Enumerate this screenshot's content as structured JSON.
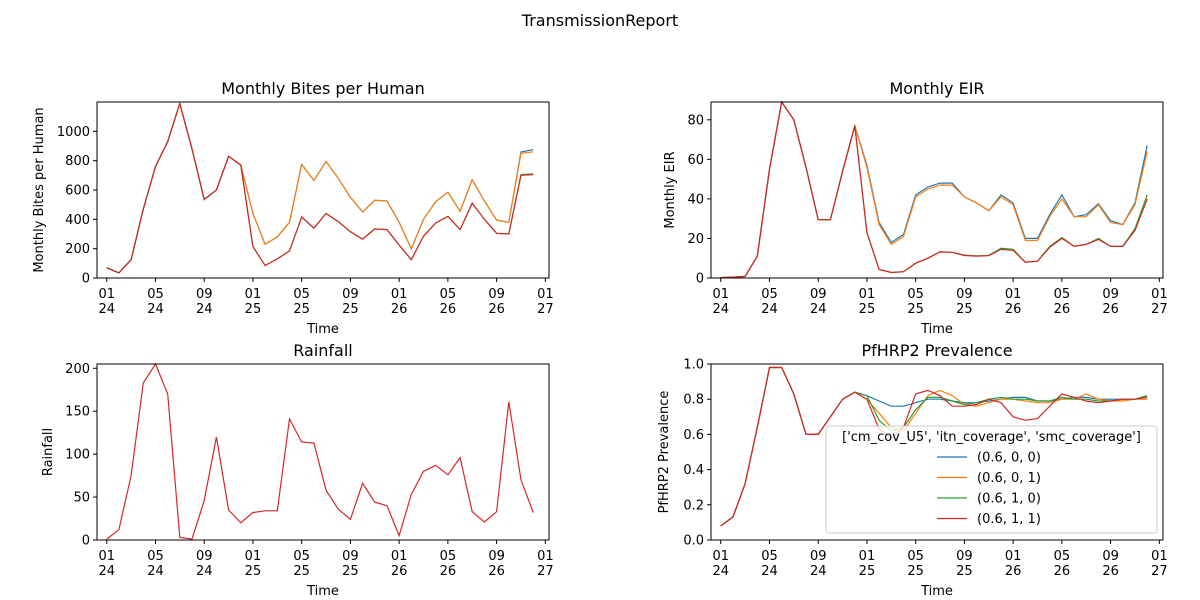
{
  "figure": {
    "title": "TransmissionReport"
  },
  "colors": {
    "s1": "#1f77b4",
    "s2": "#ff7f0e",
    "s3": "#2ca02c",
    "s4": "#d62728"
  },
  "chart_data": [
    {
      "type": "line",
      "title": "Monthly Bites per Human",
      "xlabel": "Time",
      "ylabel": "Monthly Bites per Human",
      "ylim": [
        0,
        1200
      ],
      "yticks": [
        0,
        200,
        400,
        600,
        800,
        1000
      ],
      "x_start": "2024-01",
      "xticks": [
        "01\n24",
        "05\n24",
        "09\n24",
        "01\n25",
        "05\n25",
        "09\n25",
        "01\n26",
        "05\n26",
        "09\n26",
        "01\n27"
      ],
      "series": [
        {
          "name": "(0.6, 0, 0)",
          "values": [
            70,
            35,
            125,
            470,
            760,
            930,
            1190,
            880,
            535,
            600,
            830,
            770,
            440,
            230,
            280,
            380,
            775,
            665,
            795,
            680,
            550,
            450,
            530,
            525,
            380,
            200,
            400,
            520,
            585,
            455,
            670,
            525,
            395,
            380,
            860,
            875
          ]
        },
        {
          "name": "(0.6, 0, 1)",
          "values": [
            70,
            35,
            125,
            470,
            760,
            930,
            1190,
            880,
            535,
            600,
            830,
            770,
            440,
            230,
            280,
            380,
            775,
            665,
            795,
            680,
            550,
            450,
            530,
            525,
            380,
            200,
            400,
            520,
            585,
            455,
            670,
            525,
            395,
            380,
            850,
            860
          ]
        },
        {
          "name": "(0.6, 1, 0)",
          "values": [
            70,
            35,
            125,
            470,
            760,
            930,
            1190,
            880,
            535,
            600,
            830,
            770,
            215,
            85,
            130,
            185,
            415,
            340,
            440,
            385,
            315,
            265,
            335,
            330,
            225,
            125,
            285,
            375,
            420,
            330,
            510,
            400,
            305,
            300,
            705,
            710
          ]
        },
        {
          "name": "(0.6, 1, 1)",
          "values": [
            70,
            35,
            125,
            470,
            760,
            930,
            1190,
            880,
            535,
            600,
            830,
            770,
            215,
            85,
            130,
            185,
            415,
            340,
            440,
            385,
            315,
            265,
            335,
            330,
            225,
            125,
            285,
            375,
            420,
            330,
            510,
            400,
            305,
            300,
            700,
            705
          ]
        }
      ]
    },
    {
      "type": "line",
      "title": "Monthly EIR",
      "xlabel": "Time",
      "ylabel": "Monthly EIR",
      "ylim": [
        0,
        89
      ],
      "yticks": [
        0,
        20,
        40,
        60,
        80
      ],
      "x_start": "2024-01",
      "xticks": [
        "01\n24",
        "05\n24",
        "09\n24",
        "01\n25",
        "05\n25",
        "09\n25",
        "01\n26",
        "05\n26",
        "09\n26",
        "01\n27"
      ],
      "series": [
        {
          "name": "(0.6, 0, 0)",
          "values": [
            0.2,
            0.4,
            0.8,
            11,
            55,
            89,
            80,
            56,
            29.5,
            29.5,
            54,
            77,
            57,
            28,
            18,
            22,
            42,
            46,
            48,
            48,
            41,
            38,
            34,
            42,
            38,
            20,
            20,
            32,
            42,
            31,
            32,
            37.5,
            29,
            27,
            38,
            67
          ]
        },
        {
          "name": "(0.6, 0, 1)",
          "values": [
            0.2,
            0.4,
            0.8,
            11,
            55,
            89,
            80,
            56,
            29.5,
            29.5,
            54,
            77,
            56,
            27,
            17,
            21,
            41,
            45,
            47,
            47,
            41,
            38,
            34,
            41,
            37,
            19,
            19,
            31,
            40,
            31,
            31,
            37,
            28,
            27,
            37,
            64
          ]
        },
        {
          "name": "(0.6, 1, 0)",
          "values": [
            0.2,
            0.4,
            0.8,
            11,
            55,
            89,
            80,
            56,
            29.5,
            29.5,
            54,
            77,
            23,
            4.3,
            2.8,
            3.2,
            7.5,
            10,
            13.2,
            13,
            11.6,
            11.2,
            11.5,
            15,
            14.5,
            8,
            8.5,
            16,
            20.5,
            16,
            17,
            20,
            16,
            16,
            25,
            42
          ]
        },
        {
          "name": "(0.6, 1, 1)",
          "values": [
            0.2,
            0.4,
            0.8,
            11,
            55,
            89,
            80,
            56,
            29.5,
            29.5,
            54,
            77,
            23,
            4.3,
            2.8,
            3.2,
            7.5,
            10,
            13.2,
            13,
            11.4,
            11,
            11.3,
            14.5,
            14,
            8,
            8.5,
            15.5,
            20,
            16,
            17,
            19.5,
            16,
            16,
            24,
            40
          ]
        }
      ]
    },
    {
      "type": "line",
      "title": "Rainfall",
      "xlabel": "Time",
      "ylabel": "Rainfall",
      "ylim": [
        0,
        205
      ],
      "yticks": [
        0,
        50,
        100,
        150,
        200
      ],
      "x_start": "2024-01",
      "xticks": [
        "01\n24",
        "05\n24",
        "09\n24",
        "01\n25",
        "05\n25",
        "09\n25",
        "01\n26",
        "05\n26",
        "09\n26",
        "01\n27"
      ],
      "series": [
        {
          "name": "(0.6, 1, 1)",
          "values": [
            1,
            12,
            75,
            183,
            205,
            170,
            3,
            1,
            46,
            120,
            35,
            20,
            32,
            34,
            34,
            141,
            114,
            113,
            58,
            36,
            24,
            66,
            44,
            40,
            5,
            53,
            80,
            87,
            76,
            96,
            33,
            21,
            33,
            161,
            70,
            32
          ]
        }
      ]
    },
    {
      "type": "line",
      "title": "PfHRP2 Prevalence",
      "xlabel": "Time",
      "ylabel": "PfHRP2 Prevalence",
      "ylim": [
        0,
        1
      ],
      "yticks": [
        "0.0",
        "0.2",
        "0.4",
        "0.6",
        "0.8",
        "1.0"
      ],
      "x_start": "2024-01",
      "xticks": [
        "01\n24",
        "05\n24",
        "09\n24",
        "01\n25",
        "05\n25",
        "09\n25",
        "01\n26",
        "05\n26",
        "09\n26",
        "01\n27"
      ],
      "legend": {
        "title": "['cm_cov_U5', 'itn_coverage', 'smc_coverage']",
        "location": "lower right"
      },
      "series": [
        {
          "name": "(0.6, 0, 0)",
          "values": [
            0.08,
            0.13,
            0.32,
            0.64,
            0.98,
            0.98,
            0.83,
            0.6,
            0.6,
            0.7,
            0.8,
            0.84,
            0.82,
            0.79,
            0.76,
            0.76,
            0.78,
            0.8,
            0.8,
            0.79,
            0.78,
            0.78,
            0.79,
            0.8,
            0.81,
            0.81,
            0.79,
            0.79,
            0.8,
            0.81,
            0.81,
            0.8,
            0.8,
            0.8,
            0.8,
            0.82
          ]
        },
        {
          "name": "(0.6, 0, 1)",
          "values": [
            0.08,
            0.13,
            0.32,
            0.64,
            0.98,
            0.98,
            0.83,
            0.6,
            0.6,
            0.7,
            0.8,
            0.84,
            0.8,
            0.72,
            0.64,
            0.62,
            0.72,
            0.82,
            0.85,
            0.82,
            0.77,
            0.76,
            0.78,
            0.8,
            0.8,
            0.79,
            0.78,
            0.78,
            0.8,
            0.8,
            0.83,
            0.8,
            0.79,
            0.79,
            0.8,
            0.8
          ]
        },
        {
          "name": "(0.6, 1, 0)",
          "values": [
            0.08,
            0.13,
            0.32,
            0.64,
            0.98,
            0.98,
            0.83,
            0.6,
            0.6,
            0.7,
            0.8,
            0.84,
            0.82,
            0.68,
            0.62,
            0.64,
            0.74,
            0.81,
            0.81,
            0.79,
            0.77,
            0.78,
            0.8,
            0.81,
            0.8,
            0.8,
            0.79,
            0.79,
            0.81,
            0.8,
            0.8,
            0.79,
            0.79,
            0.8,
            0.8,
            0.82
          ]
        },
        {
          "name": "(0.6, 1, 1)",
          "values": [
            0.08,
            0.13,
            0.32,
            0.64,
            0.98,
            0.98,
            0.83,
            0.6,
            0.6,
            0.7,
            0.8,
            0.84,
            0.8,
            0.63,
            0.58,
            0.64,
            0.83,
            0.85,
            0.82,
            0.76,
            0.76,
            0.77,
            0.8,
            0.78,
            0.7,
            0.68,
            0.69,
            0.76,
            0.83,
            0.81,
            0.79,
            0.78,
            0.79,
            0.8,
            0.8,
            0.81
          ]
        }
      ]
    }
  ]
}
